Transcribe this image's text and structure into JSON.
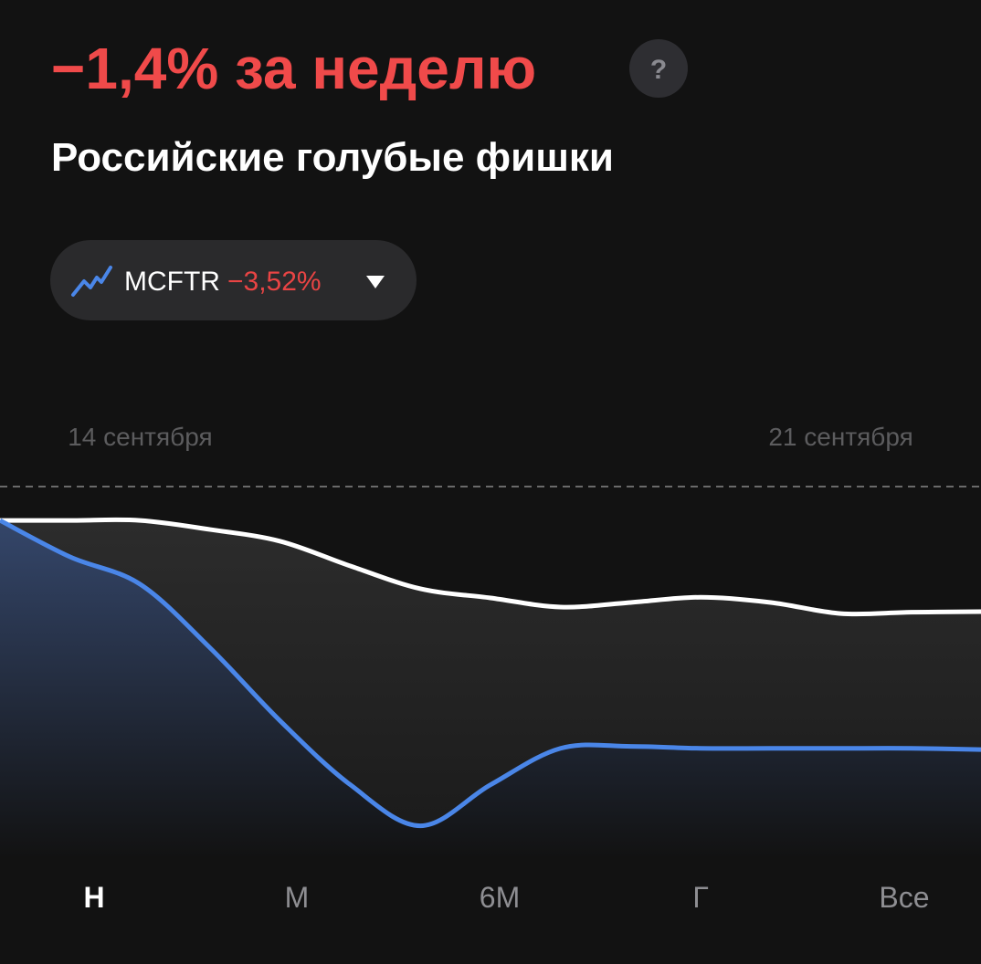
{
  "header": {
    "change": "−1,4% за неделю",
    "help": "?",
    "name": "Российские голубые фишки"
  },
  "comparison": {
    "ticker": "MCFTR",
    "change": "−3,52%"
  },
  "chart_data": {
    "type": "line",
    "categories": [
      null,
      null,
      "14 сентября",
      null,
      null,
      null,
      null,
      null,
      null,
      null,
      null,
      null,
      "21 сентября",
      null,
      null
    ],
    "series": [
      {
        "name": "Российские голубые фишки",
        "color": "#ffffff",
        "values": [
          0,
          0,
          0,
          -0.14,
          -0.32,
          -0.7,
          -1.05,
          -1.19,
          -1.33,
          -1.26,
          -1.18,
          -1.26,
          -1.43,
          -1.41,
          -1.4
        ]
      },
      {
        "name": "MCFTR",
        "color": "#4a86e8",
        "values": [
          0,
          -0.56,
          -0.98,
          -1.96,
          -3.08,
          -4.06,
          -4.69,
          -4.06,
          -3.5,
          -3.47,
          -3.5,
          -3.5,
          -3.5,
          -3.5,
          -3.52
        ]
      }
    ],
    "ylim": [
      -5.2,
      0.52
    ]
  },
  "periods": [
    "Н",
    "М",
    "6М",
    "Г",
    "Все"
  ]
}
